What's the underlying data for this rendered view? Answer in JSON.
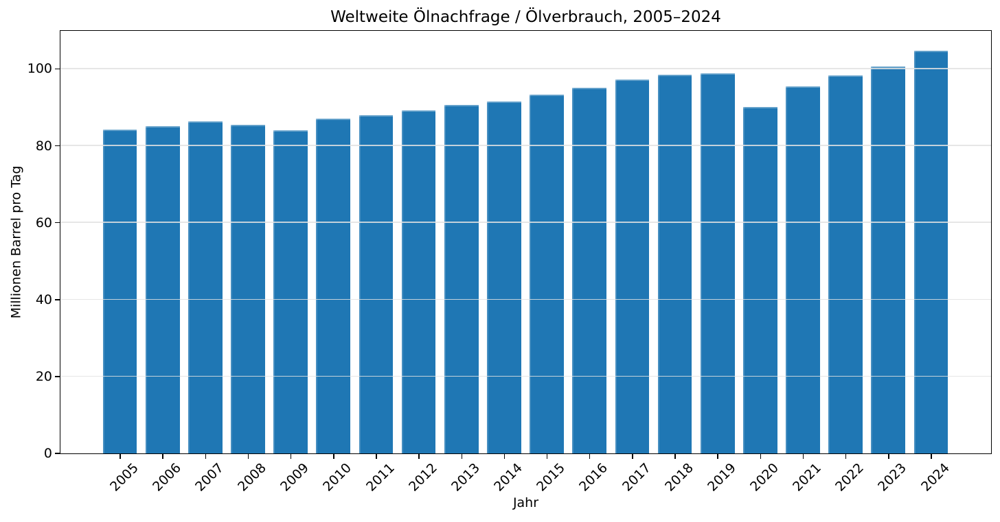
{
  "chart_data": {
    "type": "bar",
    "title": "Weltweite Ölnachfrage / Ölverbrauch, 2005–2024",
    "xlabel": "Jahr",
    "ylabel": "Millionen Barrel pro Tag",
    "categories": [
      "2005",
      "2006",
      "2007",
      "2008",
      "2009",
      "2010",
      "2011",
      "2012",
      "2013",
      "2014",
      "2015",
      "2016",
      "2017",
      "2018",
      "2019",
      "2020",
      "2021",
      "2022",
      "2023",
      "2024"
    ],
    "values": [
      84.2,
      85.1,
      86.2,
      85.4,
      84.0,
      87.0,
      87.9,
      89.1,
      90.5,
      91.4,
      93.2,
      95.0,
      97.1,
      98.4,
      98.8,
      90.0,
      95.3,
      98.3,
      100.6,
      104.6
    ],
    "yticks": [
      0,
      20,
      40,
      60,
      80,
      100
    ],
    "ylim": [
      0,
      109.9
    ],
    "xtick_rotation": 45,
    "grid": "horizontal-light",
    "legend_position": "none",
    "bar_color": "#1f77b4",
    "bar_width_frac": 0.8,
    "gridline_color": "#e2e2e2"
  }
}
